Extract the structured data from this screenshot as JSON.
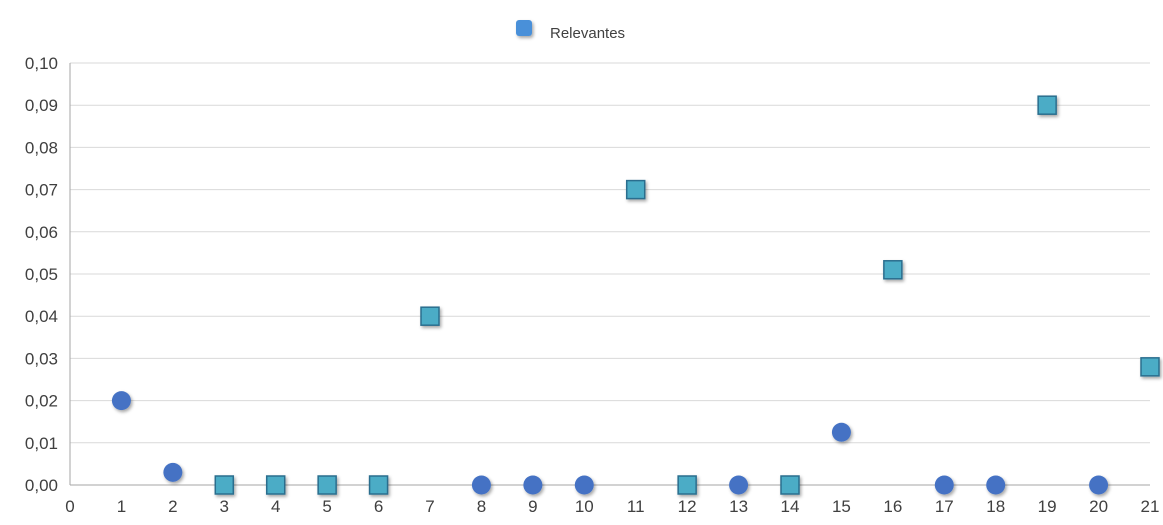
{
  "chart_data": {
    "type": "scatter",
    "title": "",
    "xlabel": "",
    "ylabel": "",
    "xlim": [
      0,
      21
    ],
    "ylim": [
      0,
      0.1
    ],
    "x_ticks": [
      "0",
      "1",
      "2",
      "3",
      "4",
      "5",
      "6",
      "7",
      "8",
      "9",
      "10",
      "11",
      "12",
      "13",
      "14",
      "15",
      "16",
      "17",
      "18",
      "19",
      "20",
      "21"
    ],
    "y_ticks": [
      "0,00",
      "0,01",
      "0,02",
      "0,03",
      "0,04",
      "0,05",
      "0,06",
      "0,07",
      "0,08",
      "0,09",
      "0,10"
    ],
    "grid": "horizontal",
    "legend_position": "top-center",
    "series": [
      {
        "name": "Relevantes",
        "marker": "square",
        "color": "#4BACC6",
        "border": "#2C6E8E",
        "points": [
          {
            "x": 3,
            "y": 0.0
          },
          {
            "x": 4,
            "y": 0.0
          },
          {
            "x": 5,
            "y": 0.0
          },
          {
            "x": 6,
            "y": 0.0
          },
          {
            "x": 7,
            "y": 0.04
          },
          {
            "x": 11,
            "y": 0.07
          },
          {
            "x": 12,
            "y": 0.0
          },
          {
            "x": 14,
            "y": 0.0
          },
          {
            "x": 16,
            "y": 0.051
          },
          {
            "x": 19,
            "y": 0.09
          },
          {
            "x": 21,
            "y": 0.028
          }
        ]
      },
      {
        "marker": "circle",
        "color": "#4472C4",
        "points": [
          {
            "x": 1,
            "y": 0.02
          },
          {
            "x": 2,
            "y": 0.003
          },
          {
            "x": 8,
            "y": 0.0
          },
          {
            "x": 9,
            "y": 0.0
          },
          {
            "x": 10,
            "y": 0.0
          },
          {
            "x": 13,
            "y": 0.0
          },
          {
            "x": 15,
            "y": 0.0125
          },
          {
            "x": 17,
            "y": 0.0
          },
          {
            "x": 18,
            "y": 0.0
          },
          {
            "x": 20,
            "y": 0.0
          }
        ]
      }
    ],
    "legend_icon_color": "#4A90D9"
  }
}
